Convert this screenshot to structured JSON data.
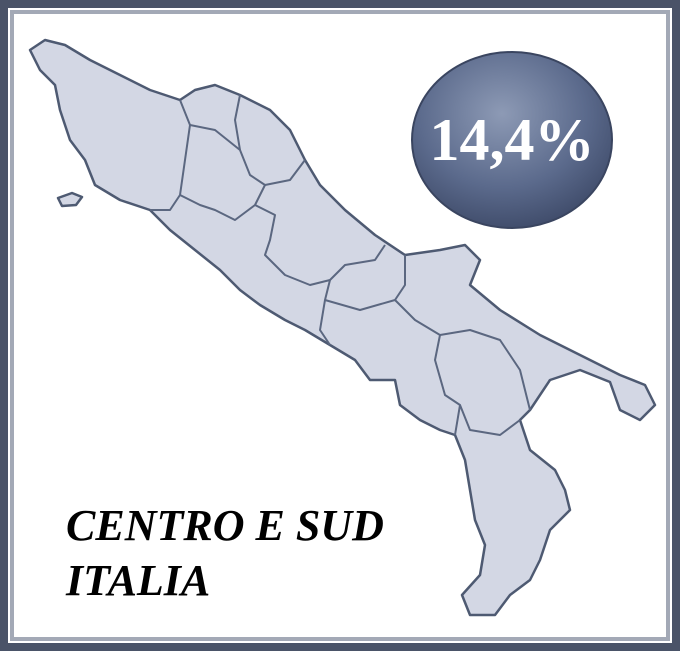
{
  "badge": "14,4%",
  "label": [
    "CENTRO E SUD",
    "ITALIA"
  ]
}
